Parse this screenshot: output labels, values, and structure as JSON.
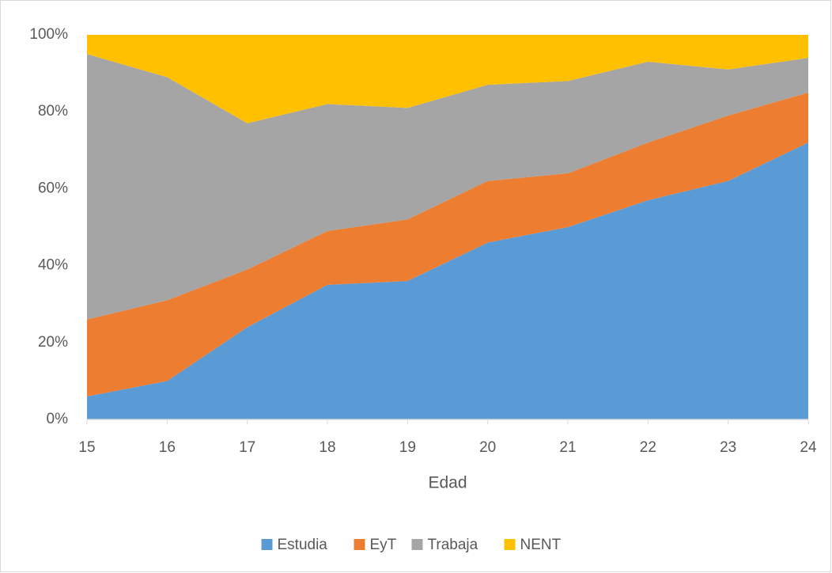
{
  "chart_data": {
    "type": "stacked-area",
    "x_label": "Edad",
    "x": [
      15,
      16,
      17,
      18,
      19,
      20,
      21,
      22,
      23,
      24
    ],
    "xlim": [
      15,
      24
    ],
    "xticks": [
      15,
      16,
      17,
      18,
      19,
      20,
      21,
      22,
      23,
      24
    ],
    "ylim": [
      0,
      100
    ],
    "yticks": [
      {
        "value": 0,
        "label": "0%"
      },
      {
        "value": 20,
        "label": "20%"
      },
      {
        "value": 40,
        "label": "40%"
      },
      {
        "value": 60,
        "label": "60%"
      },
      {
        "value": 80,
        "label": "80%"
      },
      {
        "value": 100,
        "label": "100%"
      }
    ],
    "legend": "bottom",
    "series": [
      {
        "name": "Estudia",
        "color": "#5b9bd5",
        "values": [
          6,
          10,
          24,
          35,
          36,
          46,
          50,
          57,
          62,
          72
        ]
      },
      {
        "name": "EyT",
        "color": "#ed7d31",
        "values": [
          20,
          21,
          15,
          14,
          16,
          16,
          14,
          15,
          17,
          13
        ]
      },
      {
        "name": "Trabaja",
        "color": "#a5a5a5",
        "values": [
          69,
          58,
          38,
          33,
          29,
          25,
          24,
          21,
          12,
          9
        ]
      },
      {
        "name": "NENT",
        "color": "#ffc000",
        "values": [
          5,
          11,
          23,
          18,
          19,
          13,
          12,
          7,
          9,
          6
        ]
      }
    ]
  }
}
